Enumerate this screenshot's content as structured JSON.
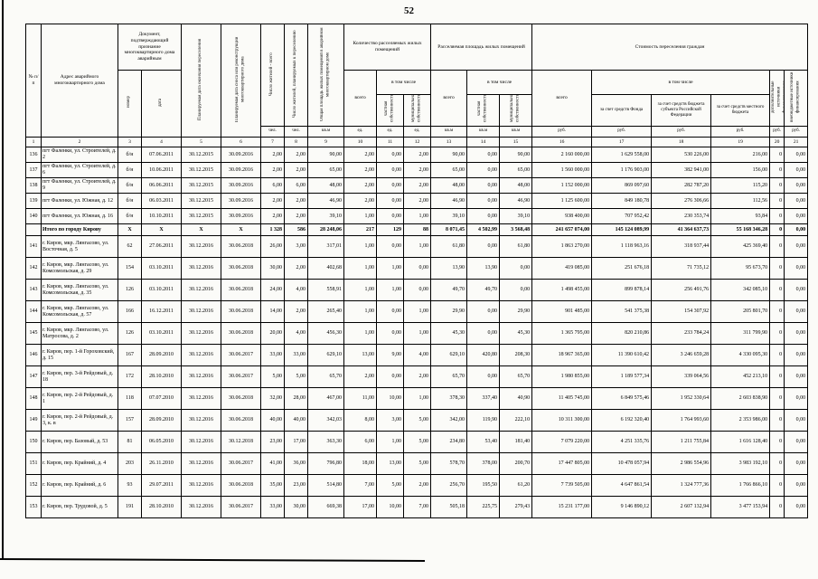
{
  "page_number": "52",
  "table": {
    "headers": {
      "num": "№ п/п",
      "address": "Адрес аварийного многоквартирного дома",
      "doc_group": "Документ, подтверждающий признание многоквартирного дома аварийным",
      "doc_number": "номер",
      "doc_date": "дата",
      "planned_resettlement_end": "Планируемая дата окончания переселения",
      "planned_demolition": "Планируемая дата сноса или реконструкции многоквартирного дома",
      "residents_total": "Число жителей - всего",
      "residents_to_resettle": "Число жителей, планируемых к переселению",
      "total_dwelling_area": "Общая площадь жилых помещений в аварийном многоквартирном доме",
      "resettled_units_group": "Количество расселяемых жилых помещений",
      "resettled_area_group": "Расселяемая площадь жилых помещений",
      "cost_group": "Стоимость переселения граждан",
      "total_label": "всего",
      "including_label": "в том числе",
      "private_ownership": "частная собственность",
      "municipal_ownership": "муниципальная собственность",
      "fund_money": "за счет средств Фонда",
      "region_money": "за счет средств бюджета субъекта Российской Федерации",
      "local_money": "за счет средств местного бюджета",
      "extra_sources": "дополнительные источники финансирования",
      "offbudget_sources": "внебюджетные источники финансирования"
    },
    "units": [
      "чел.",
      "чел.",
      "кв.м",
      "ед.",
      "ед.",
      "ед.",
      "кв.м",
      "кв.м",
      "кв.м",
      "руб.",
      "руб.",
      "руб.",
      "руб.",
      "руб.",
      "руб."
    ],
    "col_numbers": [
      "1",
      "2",
      "3",
      "4",
      "5",
      "6",
      "7",
      "8",
      "9",
      "10",
      "11",
      "12",
      "13",
      "14",
      "15",
      "16",
      "17",
      "18",
      "19",
      "20",
      "21"
    ],
    "rows": [
      {
        "bold": false,
        "cells": [
          "136",
          "пгт Фаленки, ул. Строителей, д. 2",
          "б/н",
          "07.06.2011",
          "30.12.2015",
          "30.09.2016",
          "2,00",
          "2,00",
          "90,00",
          "2,00",
          "0,00",
          "2,00",
          "90,00",
          "0,00",
          "90,00",
          "2 160 000,00",
          "1 629 558,00",
          "530 226,00",
          "216,00",
          "0",
          "0,00"
        ]
      },
      {
        "bold": false,
        "cells": [
          "137",
          "пгт Фаленки, ул. Строителей, д. 6",
          "б/н",
          "10.06.2011",
          "30.12.2015",
          "30.09.2016",
          "2,00",
          "2,00",
          "65,00",
          "2,00",
          "0,00",
          "2,00",
          "65,00",
          "0,00",
          "65,00",
          "1 560 000,00",
          "1 176 903,00",
          "382 941,00",
          "156,00",
          "0",
          "0,00"
        ]
      },
      {
        "bold": false,
        "cells": [
          "138",
          "пгт Фаленки, ул. Строителей, д. 9",
          "б/н",
          "06.06.2011",
          "30.12.2015",
          "30.09.2016",
          "6,00",
          "6,00",
          "48,00",
          "2,00",
          "0,00",
          "2,00",
          "48,00",
          "0,00",
          "48,00",
          "1 152 000,00",
          "869 097,60",
          "282 787,20",
          "115,20",
          "0",
          "0,00"
        ]
      },
      {
        "bold": false,
        "cells": [
          "139",
          "пгт Фаленки, ул. Южная, д. 12",
          "б/н",
          "06.03.2011",
          "30.12.2015",
          "30.09.2016",
          "2,00",
          "2,00",
          "46,90",
          "2,00",
          "0,00",
          "2,00",
          "46,90",
          "0,00",
          "46,90",
          "1 125 600,00",
          "849 180,78",
          "276 306,66",
          "112,56",
          "0",
          "0,00"
        ]
      },
      {
        "bold": false,
        "cells": [
          "140",
          "пгт Фаленки, ул. Южная, д. 16",
          "б/н",
          "10.10.2011",
          "30.12.2015",
          "30.09.2016",
          "2,00",
          "2,00",
          "39,10",
          "1,00",
          "0,00",
          "1,00",
          "39,10",
          "0,00",
          "39,10",
          "938 400,00",
          "707 952,42",
          "230 353,74",
          "93,84",
          "0",
          "0,00"
        ]
      },
      {
        "bold": true,
        "cells": [
          "",
          "Итого по городу Кирову",
          "Х",
          "Х",
          "Х",
          "Х",
          "1 328",
          "586",
          "28 248,06",
          "217",
          "129",
          "88",
          "8 071,45",
          "4 502,99",
          "3 568,48",
          "241 657 074,00",
          "145 124 089,99",
          "41 364 637,73",
          "55 168 346,28",
          "0",
          "0,00"
        ]
      },
      {
        "bold": false,
        "cells": [
          "141",
          "г. Киров, мкр. Лянгасово, ул. Восточная, д. 5",
          "62",
          "27.06.2011",
          "30.12.2016",
          "30.06.2018",
          "26,00",
          "3,00",
          "317,01",
          "1,00",
          "0,00",
          "1,00",
          "61,80",
          "0,00",
          "61,80",
          "1 863 270,00",
          "1 118 963,16",
          "318 937,44",
          "425 369,40",
          "0",
          "0,00"
        ]
      },
      {
        "bold": false,
        "cells": [
          "142",
          "г. Киров, мкр. Лянгасово, ул. Комсомольская, д. 29",
          "154",
          "03.10.2011",
          "30.12.2016",
          "30.06.2018",
          "30,00",
          "2,00",
          "402,68",
          "1,00",
          "1,00",
          "0,00",
          "13,90",
          "13,90",
          "0,00",
          "419 085,00",
          "251 676,18",
          "71 735,12",
          "95 673,70",
          "0",
          "0,00"
        ]
      },
      {
        "bold": false,
        "cells": [
          "143",
          "г. Киров, мкр. Лянгасово, ул. Комсомольская, д. 35",
          "126",
          "03.10.2011",
          "30.12.2016",
          "30.06.2018",
          "24,00",
          "4,00",
          "558,91",
          "1,00",
          "1,00",
          "0,00",
          "49,70",
          "49,70",
          "0,00",
          "1 498 455,00",
          "899 878,14",
          "256 491,76",
          "342 085,10",
          "0",
          "0,00"
        ]
      },
      {
        "bold": false,
        "cells": [
          "144",
          "г. Киров, мкр. Лянгасово, ул. Комсомольская, д. 57",
          "166",
          "16.12.2011",
          "30.12.2016",
          "30.06.2018",
          "14,00",
          "2,00",
          "265,40",
          "1,00",
          "0,00",
          "1,00",
          "29,90",
          "0,00",
          "29,90",
          "901 485,00",
          "541 375,38",
          "154 307,92",
          "205 801,70",
          "0",
          "0,00"
        ]
      },
      {
        "bold": false,
        "cells": [
          "145",
          "г. Киров, мкр. Лянгасово, ул. Матросова, д. 2",
          "126",
          "03.10.2011",
          "30.12.2016",
          "30.06.2018",
          "20,00",
          "4,00",
          "456,30",
          "1,00",
          "0,00",
          "1,00",
          "45,30",
          "0,00",
          "45,30",
          "1 365 795,00",
          "820 210,86",
          "233 784,24",
          "311 799,90",
          "0",
          "0,00"
        ]
      },
      {
        "bold": false,
        "cells": [
          "146",
          "г. Киров, пер. 1-й Гороховский, д. 15",
          "167",
          "28.09.2010",
          "30.12.2016",
          "30.06.2017",
          "33,00",
          "33,00",
          "629,10",
          "13,00",
          "9,00",
          "4,00",
          "629,10",
          "420,80",
          "208,30",
          "18 967 365,00",
          "11 390 610,42",
          "3 246 659,28",
          "4 330 095,30",
          "0",
          "0,00"
        ]
      },
      {
        "bold": false,
        "cells": [
          "147",
          "г. Киров, пер. 3-й Рейдовый, д. 18",
          "172",
          "28.10.2010",
          "30.12.2016",
          "30.06.2017",
          "5,00",
          "5,00",
          "65,70",
          "2,00",
          "0,00",
          "2,00",
          "65,70",
          "0,00",
          "65,70",
          "1 980 855,00",
          "1 189 577,34",
          "339 064,56",
          "452 213,10",
          "0",
          "0,00"
        ]
      },
      {
        "bold": false,
        "cells": [
          "148",
          "г. Киров, пер. 2-й Рейдовый, д. 1",
          "118",
          "07.07.2010",
          "30.12.2016",
          "30.06.2018",
          "32,00",
          "28,00",
          "467,00",
          "11,00",
          "10,00",
          "1,00",
          "378,30",
          "337,40",
          "40,90",
          "11 405 745,00",
          "6 849 575,46",
          "1 952 330,64",
          "2 603 838,90",
          "0",
          "0,00"
        ]
      },
      {
        "bold": false,
        "cells": [
          "149",
          "г. Киров, пер. 2-й Рейдовый, д. 3, к. в",
          "157",
          "28.09.2010",
          "30.12.2016",
          "30.06.2018",
          "40,00",
          "40,00",
          "342,03",
          "8,00",
          "3,00",
          "5,00",
          "342,00",
          "119,90",
          "222,10",
          "10 311 300,00",
          "6 192 320,40",
          "1 764 993,60",
          "2 353 986,00",
          "0",
          "0,00"
        ]
      },
      {
        "bold": false,
        "cells": [
          "150",
          "г. Киров, пер. Базовый, д. 53",
          "81",
          "06.05.2010",
          "30.12.2016",
          "30.12.2018",
          "23,00",
          "17,00",
          "363,30",
          "6,00",
          "1,00",
          "5,00",
          "234,80",
          "53,40",
          "181,40",
          "7 079 220,00",
          "4 251 335,76",
          "1 211 755,84",
          "1 616 128,40",
          "0",
          "0,00"
        ]
      },
      {
        "bold": false,
        "cells": [
          "151",
          "г. Киров, пер. Крайний, д. 4",
          "203",
          "26.11.2010",
          "30.12.2016",
          "30.06.2017",
          "41,00",
          "36,00",
          "796,80",
          "18,00",
          "13,00",
          "5,00",
          "578,70",
          "378,00",
          "200,70",
          "17 447 805,00",
          "10 478 057,94",
          "2 986 554,96",
          "3 983 192,10",
          "0",
          "0,00"
        ]
      },
      {
        "bold": false,
        "cells": [
          "152",
          "г. Киров, пер. Крайний, д. 6",
          "93",
          "29.07.2011",
          "30.12.2016",
          "30.06.2018",
          "35,00",
          "23,00",
          "514,80",
          "7,00",
          "5,00",
          "2,00",
          "256,70",
          "195,50",
          "61,20",
          "7 739 505,00",
          "4 647 861,54",
          "1 324 777,36",
          "1 766 866,10",
          "0",
          "0,00"
        ]
      },
      {
        "bold": false,
        "cells": [
          "153",
          "г. Киров, пер. Трудовой, д. 5",
          "191",
          "28.10.2010",
          "30.12.2016",
          "30.06.2017",
          "33,00",
          "30,00",
          "669,38",
          "17,00",
          "10,00",
          "7,00",
          "505,18",
          "225,75",
          "279,43",
          "15 231 177,00",
          "9 146 890,12",
          "2 607 132,94",
          "3 477 153,94",
          "0",
          "0,00"
        ]
      }
    ]
  }
}
